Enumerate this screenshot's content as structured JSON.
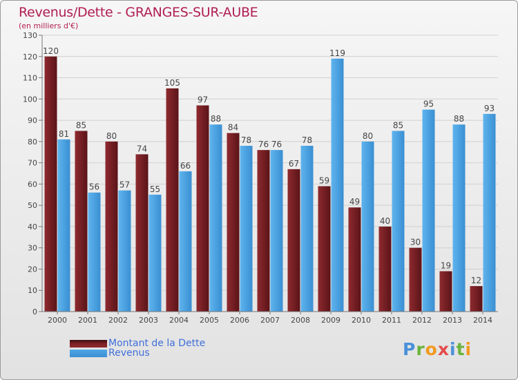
{
  "title": "Revenus/Dette - GRANGES-SUR-AUBE",
  "subtitle": "(en milliers d'€)",
  "logo": {
    "text": "Proxiti",
    "letters": [
      {
        "ch": "P",
        "color": "#4a90d9"
      },
      {
        "ch": "r",
        "color": "#6cb33e"
      },
      {
        "ch": "o",
        "color": "#f29a1f"
      },
      {
        "ch": "x",
        "color": "#e54b4b"
      },
      {
        "ch": "i",
        "color": "#4a90d9"
      },
      {
        "ch": "t",
        "color": "#6cb33e"
      },
      {
        "ch": "i",
        "color": "#f29a1f"
      }
    ]
  },
  "colors": {
    "dette": "#7a1f24",
    "revenus": "#4ea6e6",
    "title": "#b01e52",
    "legend_text": "#3f6fd8"
  },
  "chart_data": {
    "type": "bar",
    "title": "Revenus/Dette - GRANGES-SUR-AUBE",
    "subtitle": "(en milliers d'€)",
    "categories": [
      "2000",
      "2001",
      "2002",
      "2003",
      "2004",
      "2005",
      "2006",
      "2007",
      "2008",
      "2009",
      "2010",
      "2011",
      "2012",
      "2013",
      "2014"
    ],
    "series": [
      {
        "name": "Montant de la Dette",
        "values": [
          120,
          85,
          80,
          74,
          105,
          97,
          84,
          76,
          67,
          59,
          49,
          40,
          30,
          19,
          12
        ]
      },
      {
        "name": "Revenus",
        "values": [
          81,
          56,
          57,
          55,
          66,
          88,
          78,
          76,
          78,
          119,
          80,
          85,
          95,
          88,
          93
        ]
      }
    ],
    "ylim": [
      0,
      130
    ],
    "yticks": [
      0,
      10,
      20,
      30,
      40,
      50,
      60,
      70,
      80,
      90,
      100,
      110,
      120,
      130
    ],
    "grid": true,
    "legend_position": "bottom-left"
  }
}
